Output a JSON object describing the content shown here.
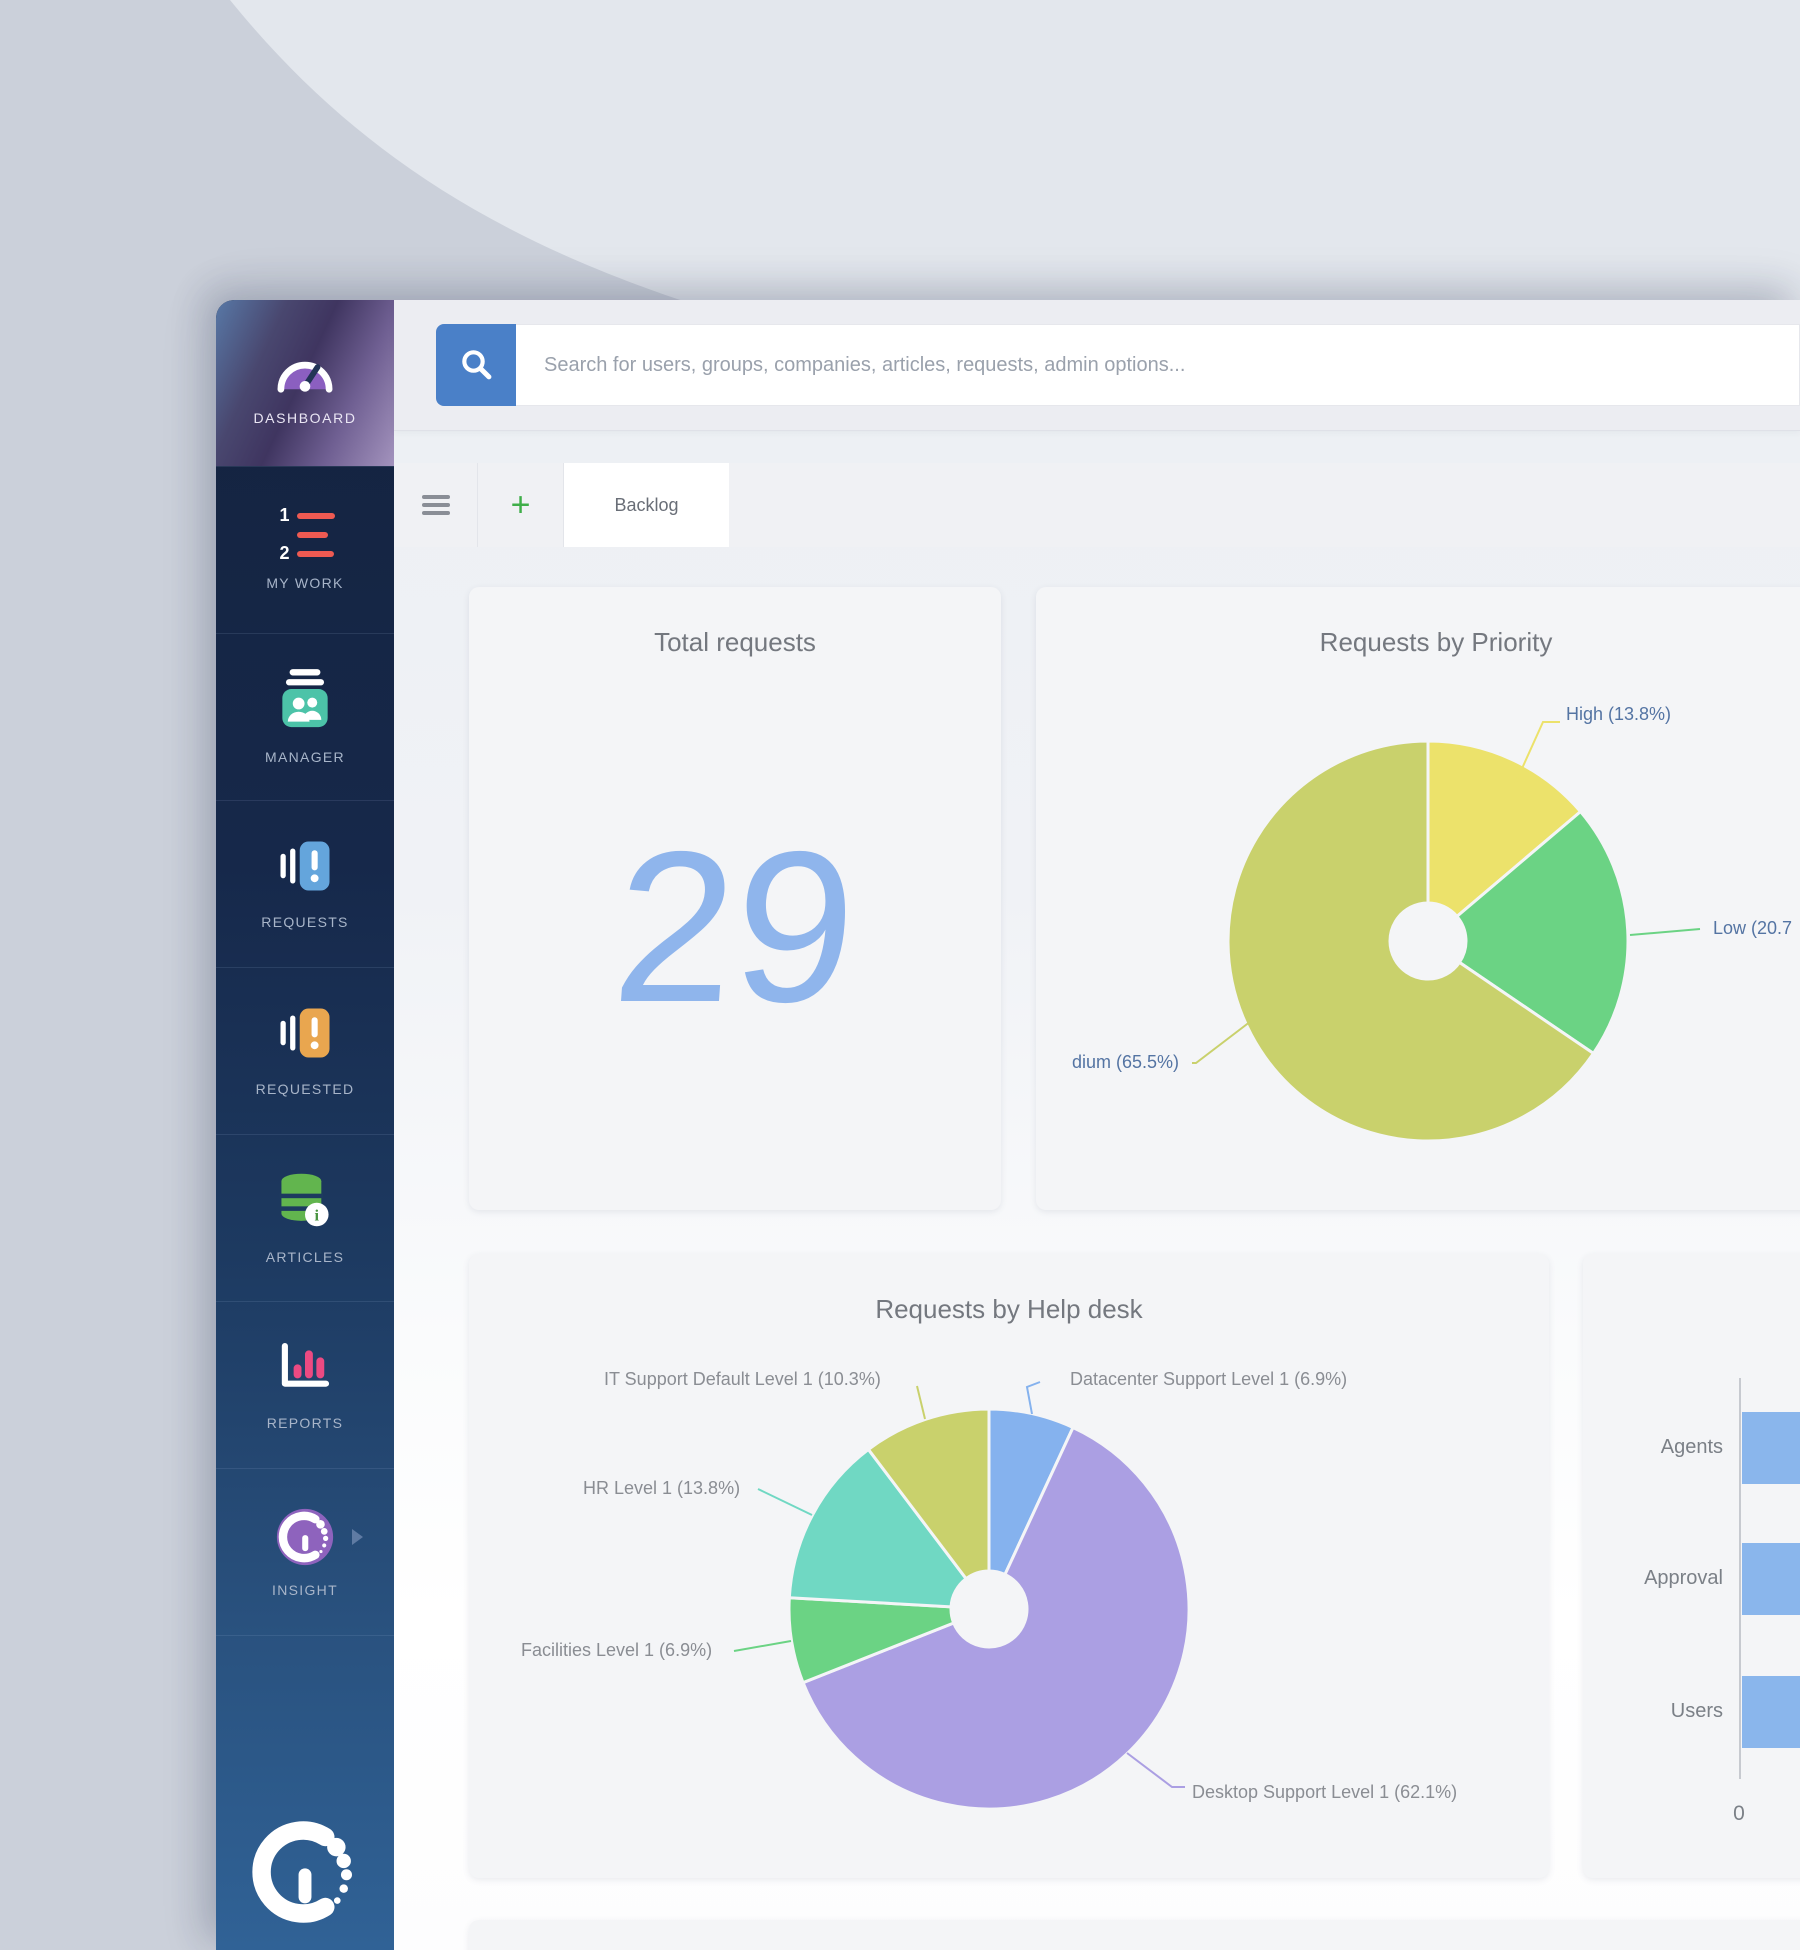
{
  "sidebar": {
    "dashboard_label": "DASHBOARD",
    "items": [
      {
        "id": "my-work",
        "label": "MY WORK"
      },
      {
        "id": "manager",
        "label": "MANAGER"
      },
      {
        "id": "requests",
        "label": "REQUESTS"
      },
      {
        "id": "requested",
        "label": "REQUESTED"
      },
      {
        "id": "articles",
        "label": "ARTICLES"
      },
      {
        "id": "reports",
        "label": "REPORTS"
      },
      {
        "id": "insight",
        "label": "INSIGHT"
      }
    ]
  },
  "header": {
    "search_placeholder": "Search for users, groups, companies, articles, requests, admin options..."
  },
  "tabs": {
    "add_label": "+",
    "active_tab": "Backlog"
  },
  "cards": {
    "total_requests": {
      "title": "Total requests",
      "value": "29",
      "value_color": "#8fb5ec"
    },
    "priority": {
      "title": "Requests by Priority"
    },
    "helpdesk": {
      "title": "Requests by Help desk"
    }
  },
  "chart_data": [
    {
      "id": "priority-donut",
      "type": "pie",
      "donut": true,
      "title": "Requests by Priority",
      "start_angle": "top",
      "clockwise": true,
      "label_color": "#5474a3",
      "series": [
        {
          "name": "High",
          "pct": 13.8,
          "color": "#ece26b",
          "label_visible": "High (13.8%)"
        },
        {
          "name": "Low",
          "pct": 20.7,
          "color": "#6bd384",
          "label_visible": "Low (20.7"
        },
        {
          "name": "Medium",
          "pct": 65.5,
          "color": "#c9d16c",
          "label_visible": "dium (65.5%)"
        }
      ]
    },
    {
      "id": "helpdesk-donut",
      "type": "pie",
      "donut": true,
      "title": "Requests by Help desk",
      "start_angle": "top",
      "clockwise": true,
      "label_color": "#8a8d93",
      "series": [
        {
          "name": "Datacenter Support Level 1",
          "pct": 6.9,
          "color": "#85b2ee",
          "label_visible": "Datacenter Support Level 1 (6.9%)"
        },
        {
          "name": "Desktop Support Level 1",
          "pct": 62.1,
          "color": "#ab9fe3",
          "label_visible": "Desktop Support Level 1 (62.1%)"
        },
        {
          "name": "Facilities Level 1",
          "pct": 6.9,
          "color": "#6bd384",
          "label_visible": "Facilities Level 1 (6.9%)"
        },
        {
          "name": "HR Level 1",
          "pct": 13.8,
          "color": "#70d8c3",
          "label_visible": "HR Level 1 (13.8%)"
        },
        {
          "name": "IT Support Default Level 1",
          "pct": 10.3,
          "color": "#c9d16c",
          "label_visible": "IT Support Default Level 1 (10.3%)"
        }
      ]
    },
    {
      "id": "team-bars",
      "type": "bar",
      "orientation": "horizontal",
      "categories": [
        "Agents",
        "Approval",
        "Users"
      ],
      "values": [
        null,
        null,
        null
      ],
      "clipped": true,
      "note": "bars extend beyond the right edge of the screenshot",
      "bar_color": "#8ab6ec",
      "x_ticks": [
        "0"
      ]
    }
  ]
}
